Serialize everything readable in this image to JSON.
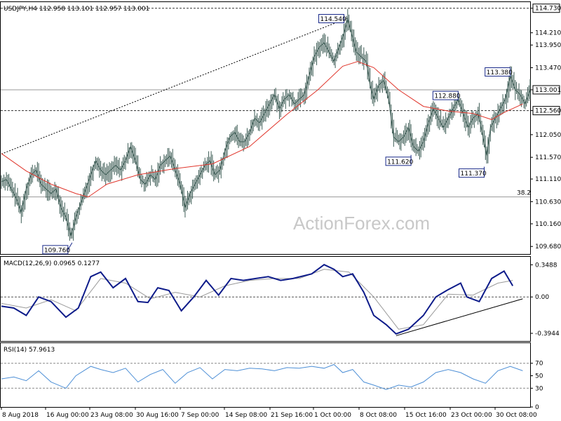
{
  "chart_data": {
    "type": "line",
    "colors": {
      "background": "#ffffff",
      "price": "#3d5c55",
      "ma": "#e0352b",
      "macd": "#0d1b8a",
      "signal": "#9a9a9a",
      "rsi": "#4d8fd6",
      "grid": "#555555",
      "trendline": "#000000"
    },
    "price_panel": {
      "title": "USDJPY,H4  112.958 113.101 112.957 113.001",
      "ylim": [
        109.52,
        114.86
      ],
      "y_ticks": [
        "114.730",
        "114.210",
        "113.950",
        "113.470",
        "113.001",
        "112.560",
        "112.050",
        "111.570",
        "111.110",
        "110.630",
        "110.160",
        "109.680"
      ],
      "current_price": "113.001",
      "horizontal_levels": [
        {
          "value": 114.73,
          "style": "dashed",
          "label": "114.730"
        },
        {
          "value": 113.001,
          "style": "solid",
          "label": "113.001"
        },
        {
          "value": 112.56,
          "style": "dashed",
          "label": "112.560"
        },
        {
          "value": 110.73,
          "style": "solid",
          "label": "38.2"
        }
      ],
      "annotations": [
        {
          "text": "114.540",
          "x": 276,
          "y": 114.54
        },
        {
          "text": "113.380",
          "x": 410,
          "y": 113.38
        },
        {
          "text": "112.880",
          "x": 368,
          "y": 112.88
        },
        {
          "text": "111.620",
          "x": 330,
          "y": 111.62
        },
        {
          "text": "111.370",
          "x": 389,
          "y": 111.37
        },
        {
          "text": "109.760",
          "x": 57,
          "y": 109.76
        }
      ],
      "trendline": [
        [
          0,
          111.64
        ],
        [
          279,
          114.52
        ]
      ],
      "price_series": [
        [
          0,
          111.05
        ],
        [
          4,
          111.1
        ],
        [
          8,
          110.9
        ],
        [
          12,
          110.7
        ],
        [
          16,
          110.4
        ],
        [
          20,
          110.9
        ],
        [
          24,
          111.2
        ],
        [
          28,
          111.3
        ],
        [
          32,
          111.0
        ],
        [
          36,
          110.9
        ],
        [
          40,
          110.8
        ],
        [
          44,
          110.9
        ],
        [
          48,
          110.5
        ],
        [
          52,
          110.3
        ],
        [
          56,
          109.9
        ],
        [
          60,
          110.3
        ],
        [
          64,
          110.6
        ],
        [
          68,
          110.9
        ],
        [
          72,
          111.2
        ],
        [
          76,
          111.5
        ],
        [
          80,
          111.3
        ],
        [
          84,
          111.2
        ],
        [
          88,
          111.3
        ],
        [
          92,
          111.4
        ],
        [
          96,
          111.3
        ],
        [
          100,
          111.5
        ],
        [
          104,
          111.8
        ],
        [
          108,
          111.5
        ],
        [
          112,
          111.1
        ],
        [
          116,
          111.0
        ],
        [
          120,
          111.2
        ],
        [
          124,
          111.1
        ],
        [
          128,
          111.4
        ],
        [
          132,
          111.5
        ],
        [
          136,
          111.6
        ],
        [
          140,
          111.3
        ],
        [
          144,
          111.0
        ],
        [
          148,
          110.5
        ],
        [
          152,
          110.8
        ],
        [
          156,
          111.0
        ],
        [
          160,
          111.2
        ],
        [
          164,
          111.4
        ],
        [
          168,
          111.5
        ],
        [
          172,
          111.2
        ],
        [
          176,
          111.3
        ],
        [
          180,
          111.7
        ],
        [
          184,
          112.0
        ],
        [
          188,
          112.1
        ],
        [
          192,
          111.9
        ],
        [
          196,
          111.9
        ],
        [
          200,
          112.1
        ],
        [
          204,
          112.4
        ],
        [
          208,
          112.3
        ],
        [
          212,
          112.5
        ],
        [
          216,
          112.7
        ],
        [
          220,
          112.9
        ],
        [
          224,
          112.6
        ],
        [
          228,
          112.8
        ],
        [
          232,
          112.9
        ],
        [
          236,
          112.7
        ],
        [
          240,
          112.8
        ],
        [
          244,
          112.9
        ],
        [
          248,
          113.3
        ],
        [
          252,
          113.7
        ],
        [
          256,
          113.9
        ],
        [
          260,
          114.0
        ],
        [
          264,
          113.8
        ],
        [
          268,
          113.6
        ],
        [
          272,
          113.9
        ],
        [
          276,
          114.2
        ],
        [
          279,
          114.5
        ],
        [
          282,
          114.2
        ],
        [
          286,
          113.8
        ],
        [
          290,
          113.7
        ],
        [
          294,
          113.6
        ],
        [
          297,
          113.1
        ],
        [
          300,
          112.8
        ],
        [
          304,
          113.1
        ],
        [
          308,
          113.2
        ],
        [
          312,
          112.8
        ],
        [
          316,
          112.0
        ],
        [
          320,
          111.9
        ],
        [
          324,
          112.0
        ],
        [
          328,
          112.2
        ],
        [
          332,
          111.8
        ],
        [
          336,
          111.7
        ],
        [
          340,
          111.9
        ],
        [
          344,
          112.3
        ],
        [
          348,
          112.6
        ],
        [
          352,
          112.4
        ],
        [
          356,
          112.2
        ],
        [
          360,
          112.4
        ],
        [
          364,
          112.6
        ],
        [
          368,
          112.8
        ],
        [
          372,
          112.5
        ],
        [
          376,
          112.2
        ],
        [
          380,
          112.4
        ],
        [
          384,
          112.5
        ],
        [
          388,
          112.0
        ],
        [
          391,
          111.6
        ],
        [
          394,
          112.2
        ],
        [
          398,
          112.4
        ],
        [
          402,
          112.6
        ],
        [
          406,
          112.8
        ],
        [
          410,
          113.3
        ],
        [
          414,
          113.0
        ],
        [
          418,
          112.9
        ],
        [
          422,
          112.7
        ],
        [
          426,
          113.0
        ]
      ],
      "ma_series": [
        [
          0,
          111.65
        ],
        [
          20,
          111.28
        ],
        [
          40,
          111.0
        ],
        [
          60,
          110.8
        ],
        [
          70,
          110.73
        ],
        [
          85,
          111.0
        ],
        [
          110,
          111.2
        ],
        [
          140,
          111.33
        ],
        [
          170,
          111.43
        ],
        [
          200,
          111.8
        ],
        [
          230,
          112.48
        ],
        [
          255,
          113.0
        ],
        [
          275,
          113.5
        ],
        [
          287,
          113.6
        ],
        [
          300,
          113.47
        ],
        [
          320,
          113.0
        ],
        [
          340,
          112.65
        ],
        [
          360,
          112.55
        ],
        [
          380,
          112.5
        ],
        [
          395,
          112.37
        ],
        [
          405,
          112.52
        ],
        [
          420,
          112.7
        ]
      ]
    },
    "macd_panel": {
      "title": "MACD(12,26,9) 0.0965 0.1277",
      "ylim": [
        -0.47,
        0.42
      ],
      "y_ticks": [
        "0.3488",
        "0.00",
        "-0.3944"
      ],
      "macd_series": [
        [
          0,
          -0.1
        ],
        [
          10,
          -0.12
        ],
        [
          20,
          -0.2
        ],
        [
          30,
          0.0
        ],
        [
          40,
          -0.05
        ],
        [
          52,
          -0.22
        ],
        [
          62,
          -0.12
        ],
        [
          72,
          0.22
        ],
        [
          80,
          0.27
        ],
        [
          90,
          0.1
        ],
        [
          100,
          0.2
        ],
        [
          110,
          -0.05
        ],
        [
          118,
          -0.06
        ],
        [
          126,
          0.1
        ],
        [
          135,
          0.07
        ],
        [
          145,
          -0.15
        ],
        [
          155,
          0.0
        ],
        [
          165,
          0.18
        ],
        [
          175,
          0.02
        ],
        [
          185,
          0.2
        ],
        [
          195,
          0.18
        ],
        [
          205,
          0.2
        ],
        [
          215,
          0.22
        ],
        [
          225,
          0.18
        ],
        [
          235,
          0.2
        ],
        [
          250,
          0.25
        ],
        [
          260,
          0.35
        ],
        [
          268,
          0.3
        ],
        [
          275,
          0.22
        ],
        [
          283,
          0.25
        ],
        [
          292,
          0.05
        ],
        [
          300,
          -0.2
        ],
        [
          310,
          -0.3
        ],
        [
          318,
          -0.4
        ],
        [
          328,
          -0.35
        ],
        [
          340,
          -0.2
        ],
        [
          350,
          0.0
        ],
        [
          360,
          0.08
        ],
        [
          370,
          0.15
        ],
        [
          375,
          0.0
        ],
        [
          385,
          -0.05
        ],
        [
          395,
          0.2
        ],
        [
          405,
          0.28
        ],
        [
          412,
          0.12
        ]
      ],
      "signal_series": [
        [
          0,
          -0.07
        ],
        [
          20,
          -0.12
        ],
        [
          40,
          -0.03
        ],
        [
          60,
          -0.15
        ],
        [
          80,
          0.2
        ],
        [
          100,
          0.15
        ],
        [
          120,
          -0.02
        ],
        [
          140,
          0.05
        ],
        [
          160,
          0.0
        ],
        [
          180,
          0.12
        ],
        [
          200,
          0.18
        ],
        [
          220,
          0.2
        ],
        [
          240,
          0.2
        ],
        [
          260,
          0.3
        ],
        [
          280,
          0.27
        ],
        [
          300,
          0.0
        ],
        [
          320,
          -0.35
        ],
        [
          340,
          -0.3
        ],
        [
          360,
          0.03
        ],
        [
          380,
          0.02
        ],
        [
          400,
          0.15
        ],
        [
          412,
          0.18
        ]
      ],
      "trendline": [
        [
          318,
          -0.42
        ],
        [
          420,
          -0.02
        ]
      ]
    },
    "rsi_panel": {
      "title": "RSI(14) 57.9613",
      "ylim": [
        0,
        100
      ],
      "y_ticks": [
        "70",
        "50",
        "30",
        "0"
      ],
      "levels": [
        70,
        30
      ],
      "rsi_series": [
        [
          0,
          45
        ],
        [
          10,
          48
        ],
        [
          20,
          42
        ],
        [
          30,
          58
        ],
        [
          40,
          40
        ],
        [
          52,
          30
        ],
        [
          60,
          50
        ],
        [
          72,
          65
        ],
        [
          80,
          60
        ],
        [
          90,
          55
        ],
        [
          100,
          62
        ],
        [
          110,
          40
        ],
        [
          120,
          52
        ],
        [
          130,
          60
        ],
        [
          140,
          38
        ],
        [
          150,
          55
        ],
        [
          160,
          63
        ],
        [
          170,
          45
        ],
        [
          180,
          60
        ],
        [
          190,
          58
        ],
        [
          200,
          62
        ],
        [
          210,
          61
        ],
        [
          220,
          58
        ],
        [
          230,
          63
        ],
        [
          240,
          62
        ],
        [
          250,
          65
        ],
        [
          260,
          62
        ],
        [
          268,
          68
        ],
        [
          275,
          55
        ],
        [
          283,
          60
        ],
        [
          292,
          40
        ],
        [
          300,
          35
        ],
        [
          310,
          28
        ],
        [
          320,
          35
        ],
        [
          330,
          32
        ],
        [
          340,
          40
        ],
        [
          350,
          55
        ],
        [
          360,
          60
        ],
        [
          370,
          55
        ],
        [
          380,
          45
        ],
        [
          390,
          38
        ],
        [
          400,
          58
        ],
        [
          410,
          65
        ],
        [
          420,
          58
        ]
      ]
    },
    "x_ticks": [
      "8 Aug 2018",
      "16 Aug 00:00",
      "23 Aug 08:00",
      "30 Aug 16:00",
      "7 Sep 00:00",
      "14 Sep 08:00",
      "21 Sep 16:00",
      "1 Oct 00:00",
      "8 Oct 08:00",
      "15 Oct 16:00",
      "23 Oct 00:00",
      "30 Oct 08:00"
    ]
  },
  "watermark": "ActionForex.com"
}
